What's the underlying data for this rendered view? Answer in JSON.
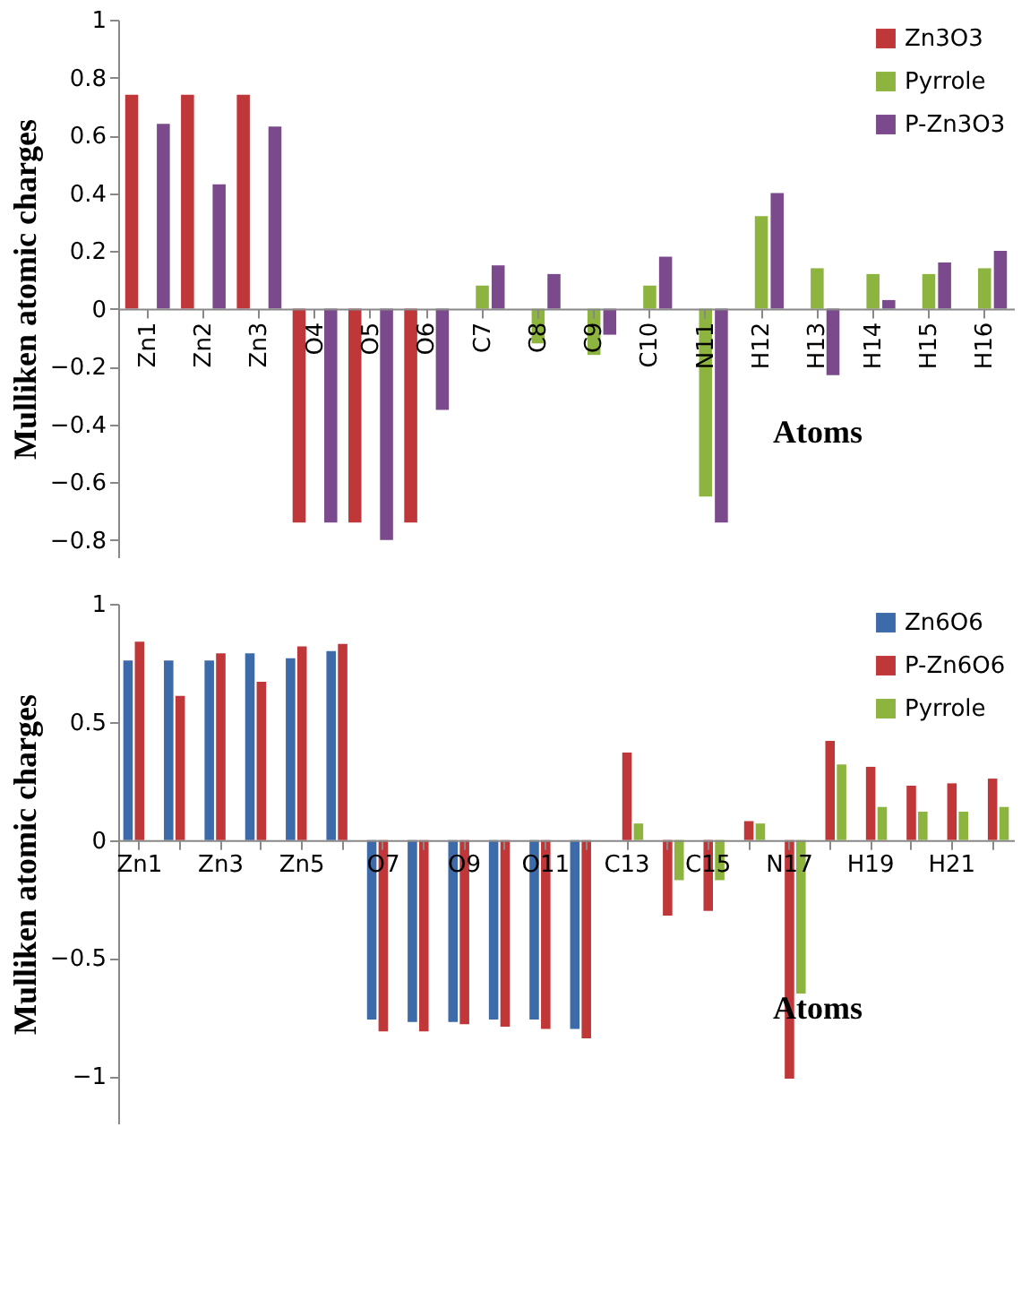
{
  "chart_data": [
    {
      "type": "bar",
      "xlabel": "Atoms",
      "ylabel": "Mulliken atomic charges",
      "categories": [
        "Zn1",
        "Zn2",
        "Zn3",
        "O4",
        "O5",
        "O6",
        "C7",
        "C8",
        "C9",
        "C10",
        "N11",
        "H12",
        "H13",
        "H14",
        "H15",
        "H16"
      ],
      "series": [
        {
          "name": "Zn3O3",
          "color": "#c0373a",
          "values": [
            0.74,
            0.74,
            0.74,
            -0.74,
            -0.74,
            -0.74,
            null,
            null,
            null,
            null,
            null,
            null,
            null,
            null,
            null,
            null
          ]
        },
        {
          "name": "Pyrrole",
          "color": "#8db43e",
          "values": [
            null,
            null,
            null,
            null,
            null,
            null,
            0.08,
            -0.12,
            -0.16,
            0.08,
            -0.65,
            0.32,
            0.14,
            0.12,
            0.12,
            0.14
          ]
        },
        {
          "name": "P-Zn3O3",
          "color": "#7b4a8c",
          "values": [
            0.64,
            0.43,
            0.63,
            -0.74,
            -0.8,
            -0.35,
            0.15,
            0.12,
            -0.09,
            0.18,
            -0.74,
            0.4,
            -0.23,
            0.03,
            0.16,
            0.2
          ]
        }
      ],
      "ylim": [
        -0.86,
        1
      ],
      "yticks": [
        -0.8,
        -0.6,
        -0.4,
        -0.2,
        0,
        0.2,
        0.4,
        0.6,
        0.8,
        1
      ],
      "legend": "top right"
    },
    {
      "type": "bar",
      "xlabel": "Atoms",
      "ylabel": "Mulliken atomic charges",
      "categories": [
        "Zn1",
        null,
        "Zn3",
        null,
        "Zn5",
        null,
        "O7",
        null,
        "O9",
        null,
        "O11",
        null,
        "C13",
        null,
        "C15",
        null,
        "N17",
        null,
        "H19",
        null,
        "H21",
        null
      ],
      "series": [
        {
          "name": "Zn6O6",
          "color": "#3d6aa9",
          "values": [
            0.76,
            0.76,
            0.76,
            0.79,
            0.77,
            0.8,
            -0.76,
            -0.77,
            -0.77,
            -0.76,
            -0.76,
            -0.8,
            null,
            null,
            null,
            null,
            null,
            null,
            null,
            null,
            null,
            null
          ]
        },
        {
          "name": "P-Zn6O6",
          "color": "#c0373a",
          "values": [
            0.84,
            0.61,
            0.79,
            0.67,
            0.82,
            0.83,
            -0.81,
            -0.81,
            -0.78,
            -0.79,
            -0.8,
            -0.84,
            0.37,
            -0.32,
            -0.3,
            0.08,
            -1.01,
            0.42,
            0.31,
            0.23,
            0.24,
            0.26
          ]
        },
        {
          "name": "Pyrrole",
          "color": "#8db43e",
          "values": [
            null,
            null,
            null,
            null,
            null,
            null,
            null,
            null,
            null,
            null,
            null,
            null,
            0.07,
            -0.17,
            -0.17,
            0.07,
            -0.65,
            0.32,
            0.14,
            0.12,
            0.12,
            0.14
          ]
        }
      ],
      "ylim": [
        -1.2,
        1
      ],
      "yticks": [
        -1,
        -0.5,
        0,
        0.5,
        1
      ],
      "legend": "top right"
    }
  ]
}
